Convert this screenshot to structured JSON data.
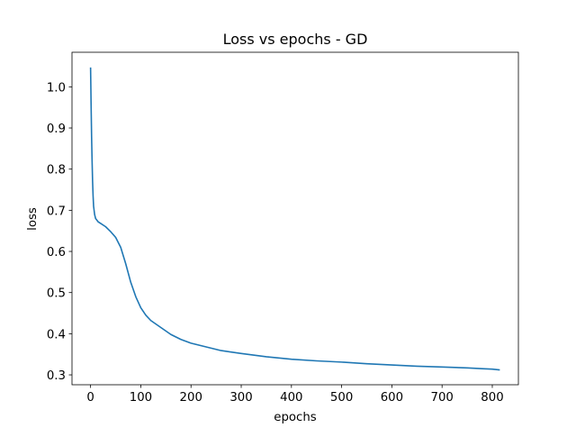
{
  "chart_data": {
    "type": "line",
    "title": "Loss vs epochs - GD",
    "xlabel": "epochs",
    "ylabel": "loss",
    "xlim": [
      -37,
      852
    ],
    "ylim": [
      0.276,
      1.084
    ],
    "xticks": [
      0,
      100,
      200,
      300,
      400,
      500,
      600,
      700,
      800
    ],
    "yticks": [
      0.3,
      0.4,
      0.5,
      0.6,
      0.7,
      0.8,
      0.9,
      1.0
    ],
    "xtick_labels": [
      "0",
      "100",
      "200",
      "300",
      "400",
      "500",
      "600",
      "700",
      "800"
    ],
    "ytick_labels": [
      "0.3",
      "0.4",
      "0.5",
      "0.6",
      "0.7",
      "0.8",
      "0.9",
      "1.0"
    ],
    "grid": false,
    "legend": "none",
    "colors": {
      "line": "#1f77b4",
      "axes": "#000000",
      "background": "#ffffff"
    },
    "series": [
      {
        "x": [
          0,
          1,
          2,
          3,
          4,
          5,
          6,
          8,
          10,
          15,
          20,
          30,
          40,
          50,
          60,
          70,
          80,
          90,
          100,
          110,
          120,
          140,
          160,
          180,
          200,
          230,
          260,
          300,
          350,
          400,
          450,
          500,
          550,
          600,
          650,
          700,
          750,
          780,
          800,
          815
        ],
        "y": [
          1.047,
          0.96,
          0.88,
          0.82,
          0.77,
          0.735,
          0.71,
          0.69,
          0.68,
          0.672,
          0.668,
          0.66,
          0.648,
          0.634,
          0.61,
          0.57,
          0.525,
          0.49,
          0.463,
          0.445,
          0.432,
          0.415,
          0.398,
          0.386,
          0.377,
          0.368,
          0.359,
          0.352,
          0.344,
          0.338,
          0.334,
          0.331,
          0.327,
          0.324,
          0.321,
          0.319,
          0.317,
          0.315,
          0.314,
          0.312
        ]
      }
    ]
  }
}
